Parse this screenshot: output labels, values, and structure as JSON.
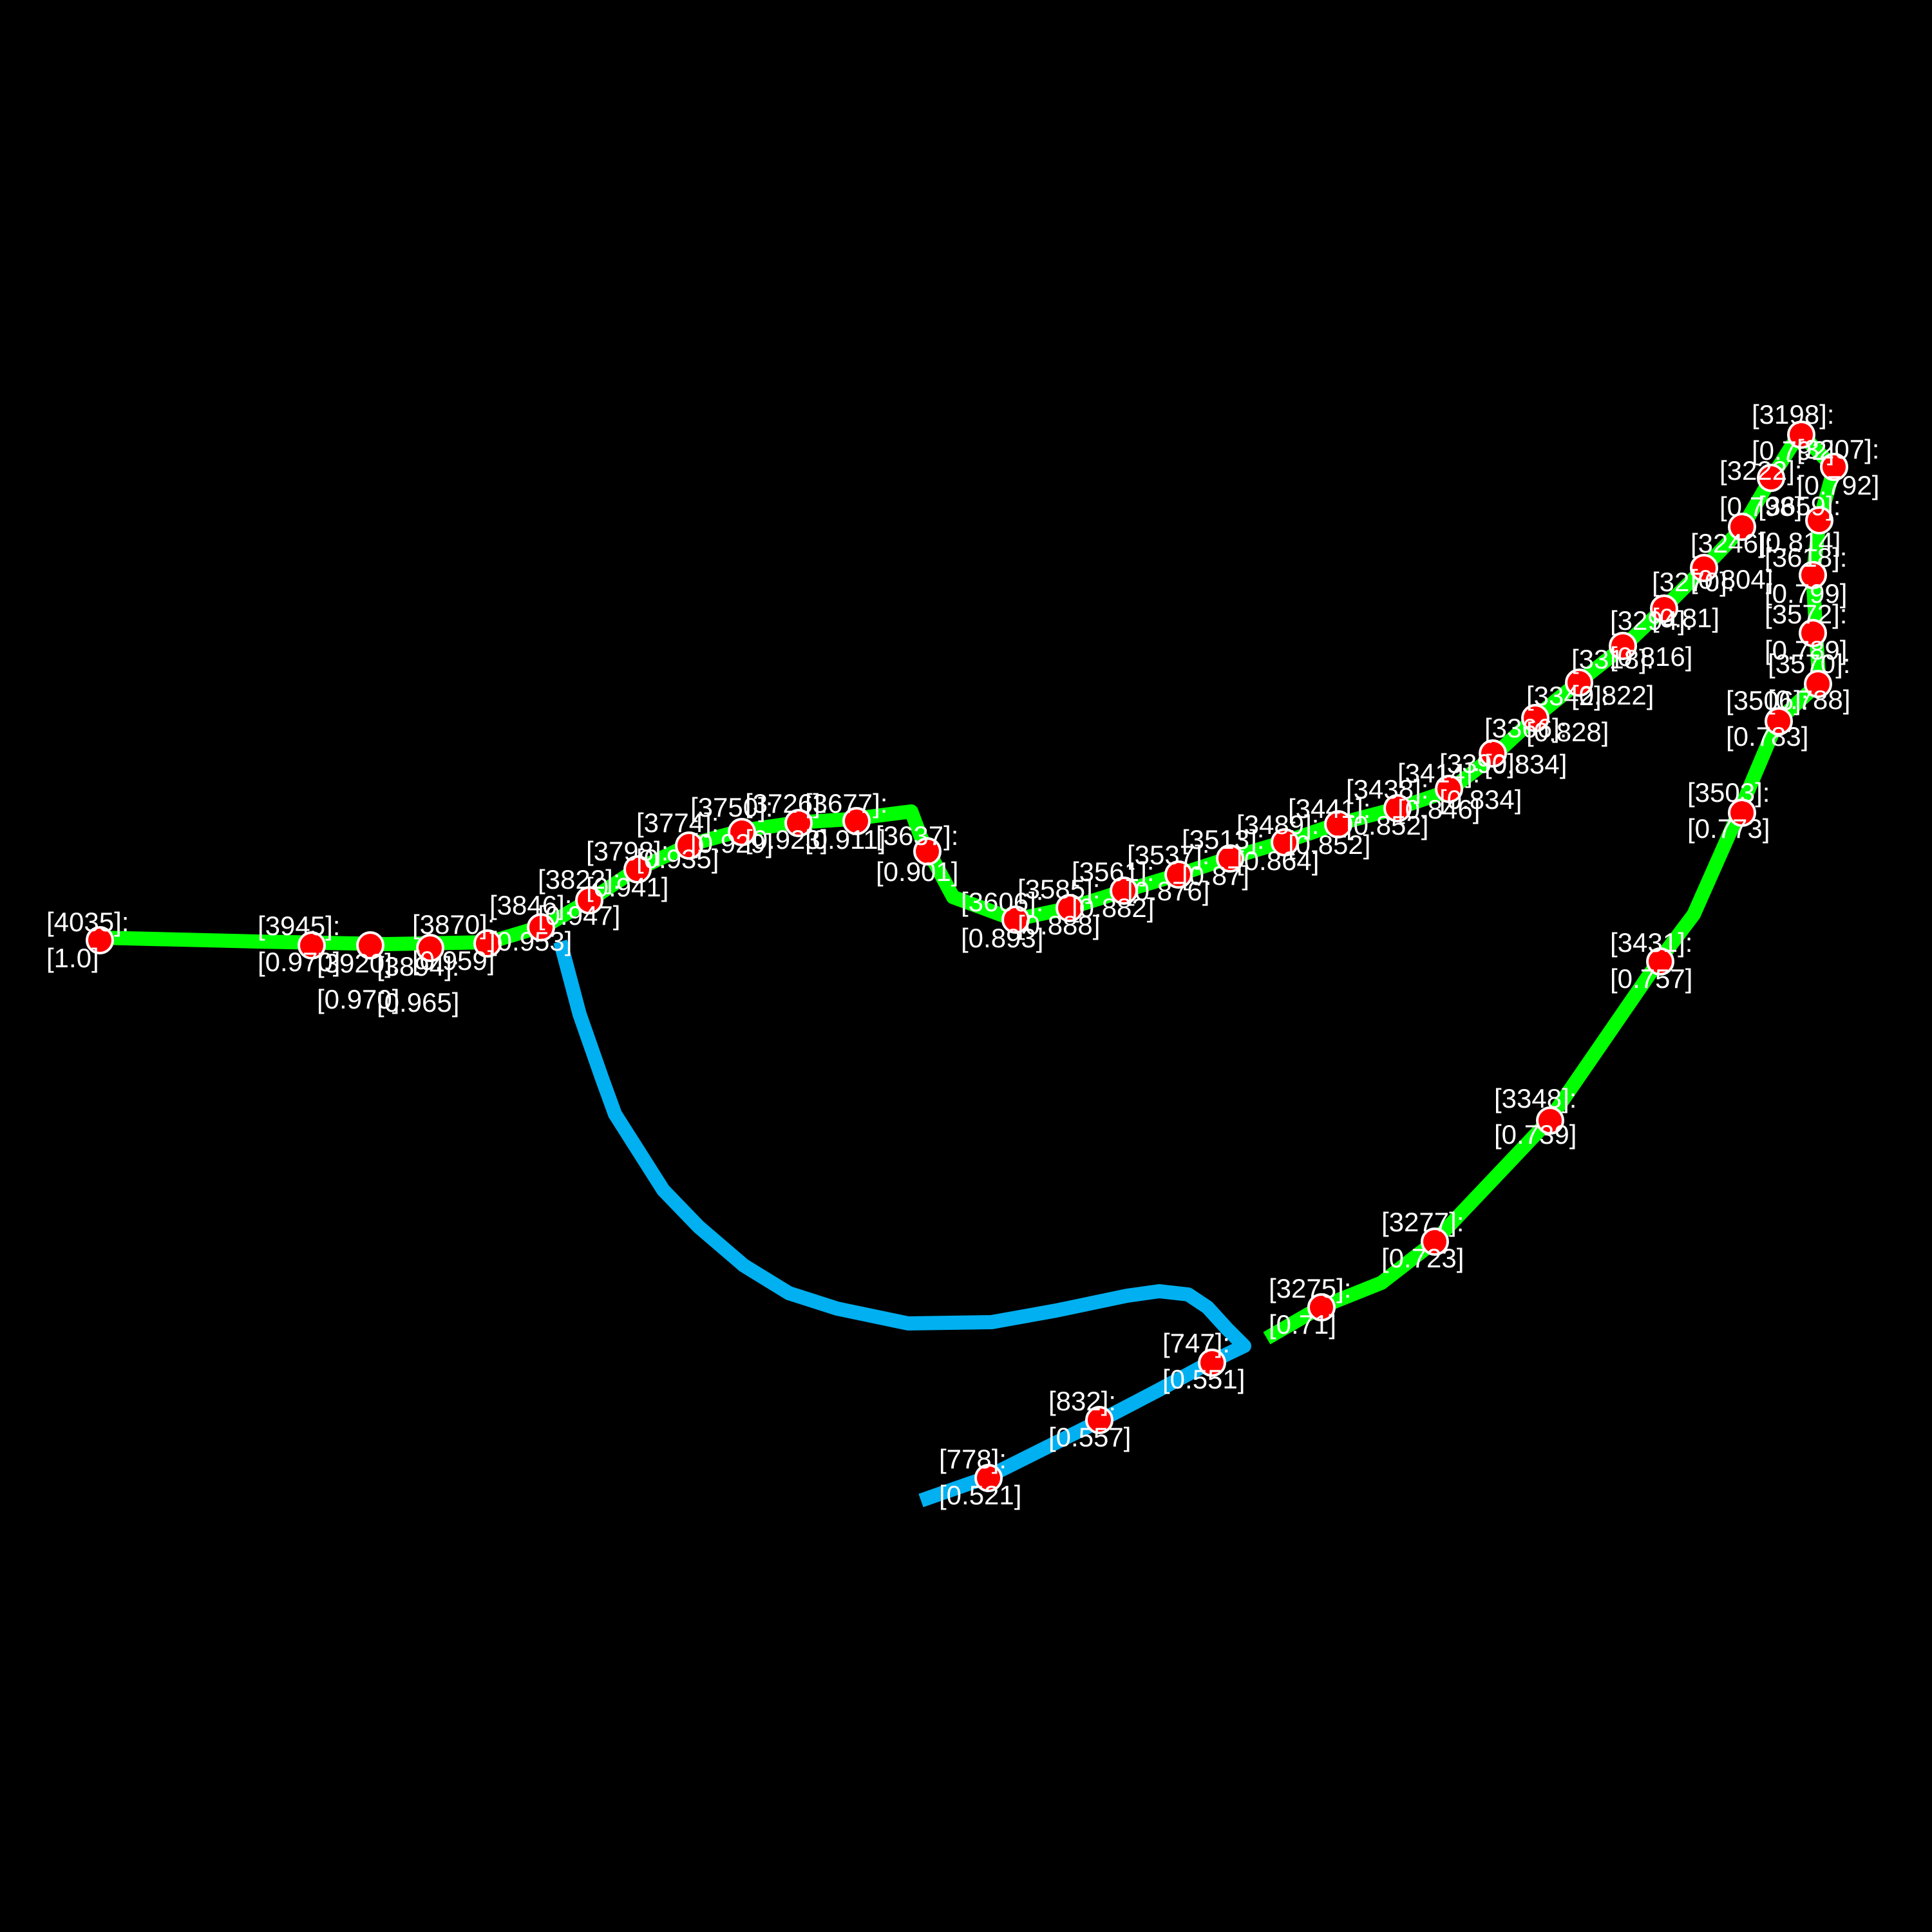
{
  "path_colors": {
    "green": "#00ff00",
    "blue": "#00b0f0",
    "marker": "#ff0000",
    "marker_stroke": "#ffffff",
    "text": "#ffffff",
    "background": "#000000"
  },
  "points": [
    {
      "id": "4035",
      "value": "1.0"
    },
    {
      "id": "3945",
      "value": "0.970"
    },
    {
      "id": "3920",
      "value": "0.970"
    },
    {
      "id": "3894",
      "value": "0.965"
    },
    {
      "id": "3870",
      "value": "0.959"
    },
    {
      "id": "3846",
      "value": "0.953"
    },
    {
      "id": "3822",
      "value": "0.947"
    },
    {
      "id": "3798",
      "value": "0.941"
    },
    {
      "id": "3774",
      "value": "0.935"
    },
    {
      "id": "3750",
      "value": "0.929"
    },
    {
      "id": "3726",
      "value": "0.923"
    },
    {
      "id": "3677",
      "value": "0.911"
    },
    {
      "id": "3637",
      "value": "0.901"
    },
    {
      "id": "3606",
      "value": "0.893"
    },
    {
      "id": "3585",
      "value": "0.888"
    },
    {
      "id": "3561",
      "value": "0.882"
    },
    {
      "id": "3537",
      "value": "0.876"
    },
    {
      "id": "3513",
      "value": "0.87"
    },
    {
      "id": "3489",
      "value": "0.864"
    },
    {
      "id": "3441",
      "value": "0.852"
    },
    {
      "id": "3438",
      "value": "0.852"
    },
    {
      "id": "3414",
      "value": "0.846"
    },
    {
      "id": "3390",
      "value": "0.834"
    },
    {
      "id": "3366",
      "value": "0.834"
    },
    {
      "id": "3342",
      "value": "0.828"
    },
    {
      "id": "3318",
      "value": "0.822"
    },
    {
      "id": "3294",
      "value": "0.816"
    },
    {
      "id": "3270",
      "value": "0.81"
    },
    {
      "id": "3246",
      "value": "0.804"
    },
    {
      "id": "3222",
      "value": "0.798"
    },
    {
      "id": "3198",
      "value": "0.792"
    },
    {
      "id": "3207",
      "value": "0.792"
    },
    {
      "id": "3659",
      "value": "0.814"
    },
    {
      "id": "3618",
      "value": "0.799"
    },
    {
      "id": "3572",
      "value": "0.789"
    },
    {
      "id": "3570",
      "value": "0.788"
    },
    {
      "id": "3506",
      "value": "0.783"
    },
    {
      "id": "3503",
      "value": "0.773"
    },
    {
      "id": "3431",
      "value": "0.757"
    },
    {
      "id": "3348",
      "value": "0.739"
    },
    {
      "id": "3277",
      "value": "0.723"
    },
    {
      "id": "3275",
      "value": "0.71"
    },
    {
      "id": "747",
      "value": "0.551"
    },
    {
      "id": "832",
      "value": "0.557"
    },
    {
      "id": "778",
      "value": "0.521"
    }
  ]
}
